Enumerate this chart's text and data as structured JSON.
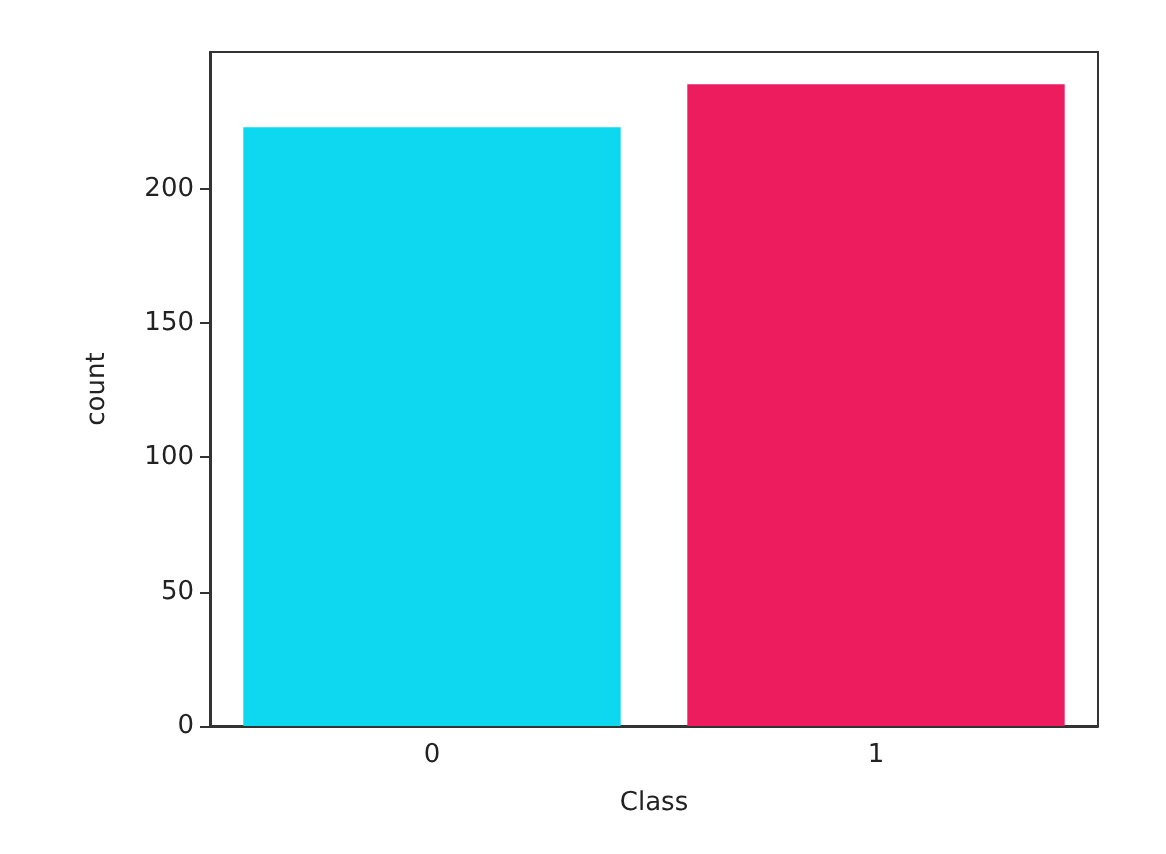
{
  "chart_data": {
    "type": "bar",
    "xlabel": "Class",
    "ylabel": "count",
    "categories": [
      "0",
      "1"
    ],
    "values": [
      223,
      239
    ],
    "colors": [
      "#0dd8f0",
      "#ec1c5f"
    ],
    "ylim": [
      0,
      251
    ],
    "yticks": [
      0,
      50,
      100,
      150,
      200
    ]
  }
}
